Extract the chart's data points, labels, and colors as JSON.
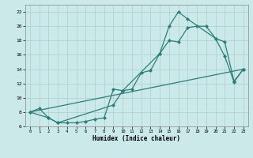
{
  "xlabel": "Humidex (Indice chaleur)",
  "bg_color": "#cce9e9",
  "grid_color": "#aacfcf",
  "line_color": "#2d7d78",
  "xlim": [
    -0.5,
    23.5
  ],
  "ylim": [
    6,
    23
  ],
  "yticks": [
    6,
    8,
    10,
    12,
    14,
    16,
    18,
    20,
    22
  ],
  "xticks": [
    0,
    1,
    2,
    3,
    4,
    5,
    6,
    7,
    8,
    9,
    10,
    11,
    12,
    13,
    14,
    15,
    16,
    17,
    18,
    19,
    20,
    21,
    22,
    23
  ],
  "line1_x": [
    0,
    1,
    2,
    3,
    4,
    5,
    6,
    7,
    8,
    9,
    10,
    11,
    12,
    13,
    14,
    15,
    16,
    17,
    18,
    19,
    20,
    21,
    22,
    23
  ],
  "line1_y": [
    8.0,
    8.5,
    7.2,
    6.5,
    6.5,
    6.5,
    6.7,
    7.0,
    7.2,
    11.2,
    11.0,
    11.2,
    13.5,
    13.8,
    16.2,
    18.0,
    17.8,
    19.8,
    20.0,
    20.0,
    18.3,
    15.8,
    12.2,
    14.0
  ],
  "line2_x": [
    0,
    2,
    3,
    9,
    10,
    14,
    15,
    16,
    17,
    20,
    21,
    22,
    23
  ],
  "line2_y": [
    8.0,
    7.2,
    6.5,
    9.0,
    11.0,
    16.2,
    20.0,
    22.0,
    21.0,
    18.3,
    17.8,
    12.3,
    14.0
  ],
  "line3_x": [
    0,
    23
  ],
  "line3_y": [
    8.0,
    14.0
  ]
}
